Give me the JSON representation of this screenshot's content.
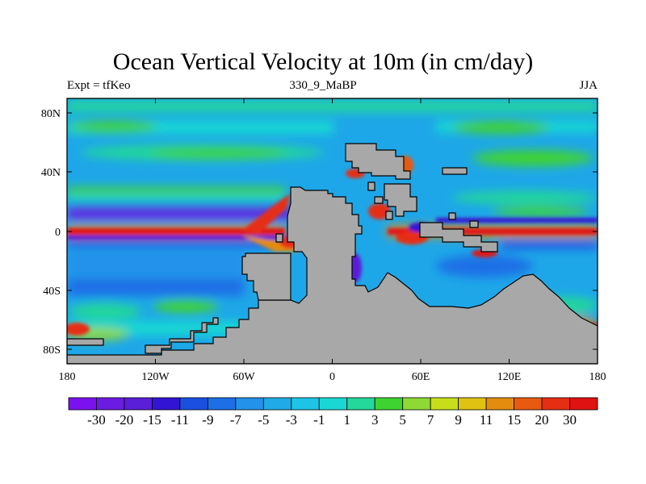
{
  "title": "Ocean Vertical Velocity at 10m (in cm/day)",
  "left_string": "Expt = tfKeo",
  "center_string": "330_9_MaBP",
  "right_string": "JJA",
  "x_ticks": [
    "180",
    "120W",
    "60W",
    "0",
    "60E",
    "120E",
    "180"
  ],
  "y_ticks": [
    "80N",
    "40N",
    "0",
    "40S",
    "80S"
  ],
  "colorbar": {
    "labels": [
      "-30",
      "-20",
      "-15",
      "-11",
      "-9",
      "-7",
      "-5",
      "-3",
      "-1",
      "1",
      "3",
      "5",
      "7",
      "9",
      "11",
      "15",
      "20",
      "30"
    ],
    "colors": [
      "#7a11ee",
      "#6a1ce0",
      "#5a1fd8",
      "#3214d4",
      "#1b4fe0",
      "#1d6fe6",
      "#2392ea",
      "#20abe8",
      "#1ec4e6",
      "#19d8d3",
      "#24d79a",
      "#3fd332",
      "#8ed935",
      "#c8de1c",
      "#e0c212",
      "#e48c0e",
      "#e85a10",
      "#e62e12",
      "#e01212"
    ]
  },
  "colors": {
    "land": "#a8a8a8",
    "ocean": "#1ea7e8",
    "coast": "#000000"
  }
}
